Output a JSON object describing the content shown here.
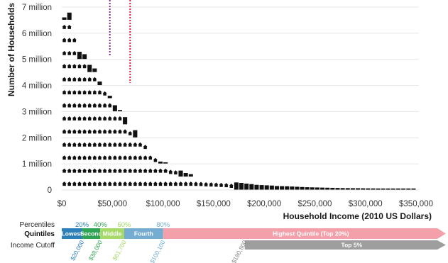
{
  "chart_data": {
    "type": "bar",
    "ylabel": "Number of Households",
    "xlabel": "Household Income (2010 US Dollars)",
    "ylim": [
      0,
      7000000
    ],
    "xlim": [
      0,
      350000
    ],
    "bin_width": 5000,
    "y_ticks": [
      "0",
      "1 million",
      "2 million",
      "3 million",
      "4 million",
      "5 million",
      "6 million",
      "7 million"
    ],
    "y_tick_values": [
      0,
      1000000,
      2000000,
      3000000,
      4000000,
      5000000,
      6000000,
      7000000
    ],
    "x_ticks": [
      "$0",
      "$50,000",
      "$100,000",
      "$150,000",
      "$200,000",
      "$250,000",
      "$300,000",
      "$350,000"
    ],
    "x_tick_values": [
      0,
      50000,
      100000,
      150000,
      200000,
      250000,
      300000,
      350000
    ],
    "grid": true,
    "bins_x": [
      2500,
      7500,
      12500,
      17500,
      22500,
      27500,
      32500,
      37500,
      42500,
      47500,
      52500,
      57500,
      62500,
      67500,
      72500,
      77500,
      82500,
      87500,
      92500,
      97500,
      102500,
      107500,
      112500,
      117500,
      122500,
      127500,
      132500,
      137500,
      142500,
      147500,
      152500,
      157500,
      162500,
      167500,
      172500,
      177500,
      182500,
      187500,
      192500,
      197500,
      202500,
      207500,
      212500,
      217500,
      222500,
      227500,
      232500,
      237500,
      242500,
      247500,
      252500,
      257500,
      262500,
      267500,
      272500,
      277500,
      282500,
      287500,
      292500,
      297500,
      302500,
      307500,
      312500,
      317500,
      322500,
      327500,
      332500,
      337500,
      342500,
      347500
    ],
    "values": [
      6600000,
      6800000,
      6000000,
      5300000,
      5200000,
      4800000,
      4650000,
      4150000,
      3900000,
      3600000,
      3250000,
      3050000,
      2800000,
      2350000,
      2300000,
      2000000,
      1800000,
      1500000,
      1300000,
      1080000,
      1050000,
      900000,
      850000,
      750000,
      650000,
      600000,
      490000,
      480000,
      450000,
      440000,
      420000,
      400000,
      380000,
      330000,
      300000,
      280000,
      250000,
      230000,
      200000,
      190000,
      180000,
      170000,
      150000,
      145000,
      140000,
      130000,
      120000,
      110000,
      100000,
      95000,
      90000,
      85000,
      80000,
      75000,
      70000,
      65000,
      62000,
      60000,
      58000,
      55000,
      52000,
      50000,
      48000,
      46000,
      44000,
      42000,
      40000,
      38000,
      36000,
      34000
    ],
    "cutoff_lines": [
      {
        "x": 47500,
        "color": "#7b3294"
      },
      {
        "x": 67500,
        "color": "#e41a3c"
      }
    ]
  },
  "quintiles": {
    "percentiles_label": "Percentiles",
    "quintiles_label": "Quintiles",
    "cutoff_label": "Income Cutoff",
    "percentiles": [
      {
        "label": "20%",
        "x": 20000,
        "color": "#2c7fb8"
      },
      {
        "label": "40%",
        "x": 38000,
        "color": "#31a354"
      },
      {
        "label": "60%",
        "x": 61700,
        "color": "#a6d96a"
      },
      {
        "label": "80%",
        "x": 100100,
        "color": "#74add1"
      }
    ],
    "segments": [
      {
        "label": "Lowest",
        "from": 0,
        "to": 20000,
        "color": "#2c7fb8"
      },
      {
        "label": "Second",
        "from": 20000,
        "to": 38000,
        "color": "#31a354"
      },
      {
        "label": "Middle",
        "from": 38000,
        "to": 61700,
        "color": "#a6d96a"
      },
      {
        "label": "Fourth",
        "from": 61700,
        "to": 100100,
        "color": "#74add1"
      },
      {
        "label": "Highest Quintile (Top 20%)",
        "from": 100100,
        "to": 378000,
        "color": "#f4a0aa"
      }
    ],
    "top5": {
      "label": "Top 5%",
      "from": 180800,
      "to": 378000,
      "color": "#9e9e9e"
    },
    "cutoffs": [
      {
        "label": "$20,000",
        "x": 20000,
        "color": "#2c7fb8"
      },
      {
        "label": "$38,000",
        "x": 38000,
        "color": "#31a354"
      },
      {
        "label": "$61,700",
        "x": 61700,
        "color": "#a6d96a"
      },
      {
        "label": "$100,100",
        "x": 100100,
        "color": "#74add1"
      },
      {
        "label": "$180,800",
        "x": 180800,
        "color": "#888888"
      }
    ]
  }
}
